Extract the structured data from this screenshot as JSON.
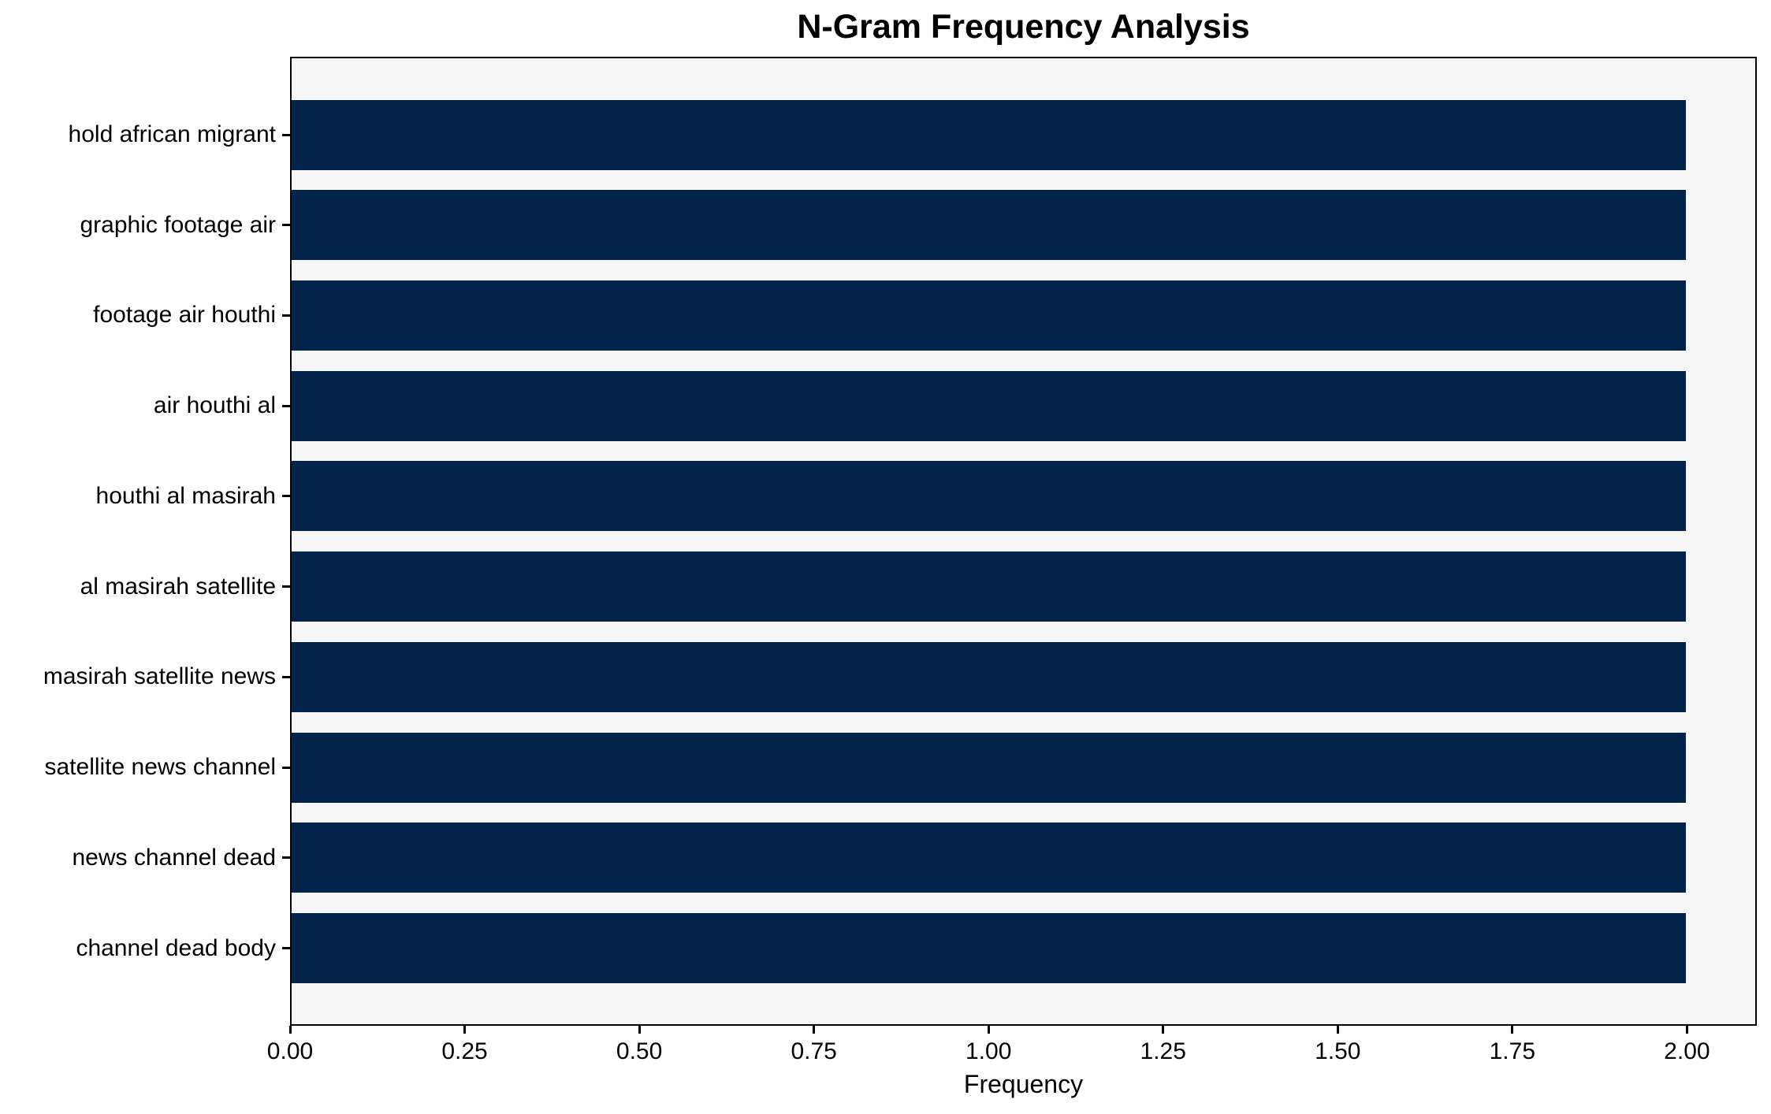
{
  "chart_data": {
    "type": "bar",
    "orientation": "horizontal",
    "title": "N-Gram Frequency Analysis",
    "xlabel": "Frequency",
    "ylabel": "",
    "categories": [
      "hold african migrant",
      "graphic footage air",
      "footage air houthi",
      "air houthi al",
      "houthi al masirah",
      "al masirah satellite",
      "masirah satellite news",
      "satellite news channel",
      "news channel dead",
      "channel dead body"
    ],
    "values": [
      2.0,
      2.0,
      2.0,
      2.0,
      2.0,
      2.0,
      2.0,
      2.0,
      2.0,
      2.0
    ],
    "xlim": [
      0,
      2.1
    ],
    "xtick_labels": [
      "0.00",
      "0.25",
      "0.50",
      "0.75",
      "1.00",
      "1.25",
      "1.50",
      "1.75",
      "2.00"
    ],
    "xtick_values": [
      0.0,
      0.25,
      0.5,
      0.75,
      1.0,
      1.25,
      1.5,
      1.75,
      2.0
    ],
    "grid": false,
    "legend": null,
    "bar_color": "#02234a",
    "plot_background": "#f7f7f7",
    "figure_background": "#ffffff",
    "axis_color": "#000000"
  }
}
